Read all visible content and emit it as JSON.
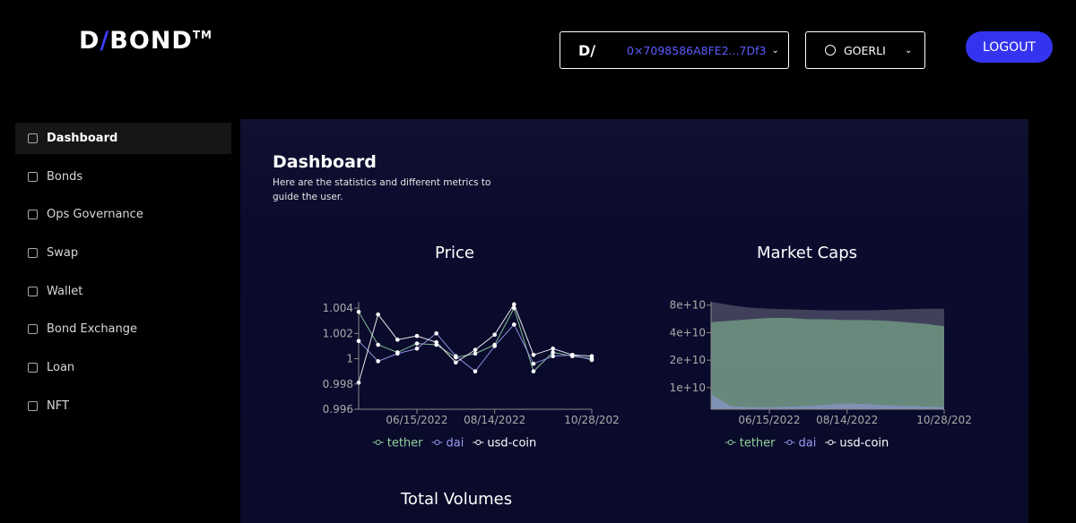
{
  "header": {
    "logo": {
      "left": "D",
      "slash": "/",
      "right": "BOND",
      "mark": "TM"
    },
    "wallet_icon": "D/",
    "wallet_address": "0×7098586A8FE2...7Df3",
    "network": "GOERLI",
    "logout": "LOGOUT"
  },
  "nav": [
    "Dashboard",
    "Bonds",
    "Ops Governance",
    "Swap",
    "Wallet",
    "Bond Exchange",
    "Loan",
    "NFT"
  ],
  "page": {
    "title": "Dashboard",
    "description": "Here are the statistics and different metrics to guide the user.",
    "volumes_title": "Total Volumes"
  },
  "chart_data": [
    {
      "type": "line",
      "title": "Price",
      "x": [
        "2022-05-01",
        "2022-05-16",
        "2022-05-31",
        "2022-06-15",
        "2022-06-30",
        "2022-07-15",
        "2022-07-30",
        "2022-08-14",
        "2022-08-29",
        "2022-09-13",
        "2022-09-28",
        "2022-10-13",
        "2022-10-28"
      ],
      "xlim": [
        "2022-05-01",
        "2022-10-28"
      ],
      "xticks": [
        {
          "value": "2022-06-15",
          "label": "06/15/2022"
        },
        {
          "value": "2022-08-14",
          "label": "08/14/2022"
        },
        {
          "value": "2022-10-28",
          "label": "10/28/202"
        }
      ],
      "ylim": [
        0.996,
        1.0045
      ],
      "yticks": [
        0.996,
        0.998,
        1,
        1.002,
        1.004
      ],
      "series": [
        {
          "name": "tether",
          "color": "#8fd19e",
          "values": [
            1.0037,
            1.0011,
            1.0005,
            1.0012,
            1.0011,
            1.0001,
            1.0004,
            1.0011,
            1.004,
            0.999,
            1.0005,
            1.0002,
            1.0
          ]
        },
        {
          "name": "dai",
          "color": "#9a9af0",
          "values": [
            1.0014,
            0.9998,
            1.0004,
            1.0008,
            1.002,
            1.0002,
            0.999,
            1.001,
            1.0027,
            0.9996,
            1.0002,
            1.0003,
            0.9999
          ]
        },
        {
          "name": "usd-coin",
          "color": "#ffffff",
          "values": [
            0.9981,
            1.0035,
            1.0015,
            1.0018,
            1.0013,
            0.9997,
            1.0007,
            1.0019,
            1.0043,
            1.0003,
            1.0008,
            1.0003,
            1.0002
          ]
        }
      ]
    },
    {
      "type": "area",
      "title": "Market Caps",
      "log_scale": true,
      "x": [
        "2022-05-01",
        "2022-05-16",
        "2022-05-31",
        "2022-06-15",
        "2022-06-30",
        "2022-07-15",
        "2022-07-30",
        "2022-08-14",
        "2022-08-29",
        "2022-09-13",
        "2022-09-28",
        "2022-10-13",
        "2022-10-28"
      ],
      "xlim": [
        "2022-05-01",
        "2022-10-28"
      ],
      "xticks": [
        {
          "value": "2022-06-15",
          "label": "06/15/2022"
        },
        {
          "value": "2022-08-14",
          "label": "08/14/2022"
        },
        {
          "value": "2022-10-28",
          "label": "10/28/202"
        }
      ],
      "ylim": [
        5800000000,
        87000000000
      ],
      "yticks": [
        {
          "value": 10000000000,
          "label": "1e+10"
        },
        {
          "value": 20000000000,
          "label": "2e+10"
        },
        {
          "value": 40000000000,
          "label": "4e+10"
        },
        {
          "value": 80000000000,
          "label": "8e+10"
        }
      ],
      "series": [
        {
          "name": "tether",
          "color": "#8fd19e",
          "values": [
            52000000000,
            54000000000,
            56000000000,
            58000000000,
            58000000000,
            56000000000,
            56000000000,
            55000000000,
            55000000000,
            54000000000,
            52000000000,
            50000000000,
            47000000000
          ]
        },
        {
          "name": "dai",
          "color": "#9a9af0",
          "values": [
            8500000000,
            6300000000,
            6100000000,
            6100000000,
            6200000000,
            6300000000,
            6500000000,
            6700000000,
            6600000000,
            6400000000,
            6300000000,
            6200000000,
            6100000000
          ]
        },
        {
          "name": "usd-coin",
          "color": "#ffffff",
          "values": [
            87000000000,
            80000000000,
            75000000000,
            73000000000,
            72000000000,
            71000000000,
            70000000000,
            70000000000,
            70000000000,
            71000000000,
            72000000000,
            73000000000,
            73000000000
          ]
        }
      ]
    }
  ]
}
